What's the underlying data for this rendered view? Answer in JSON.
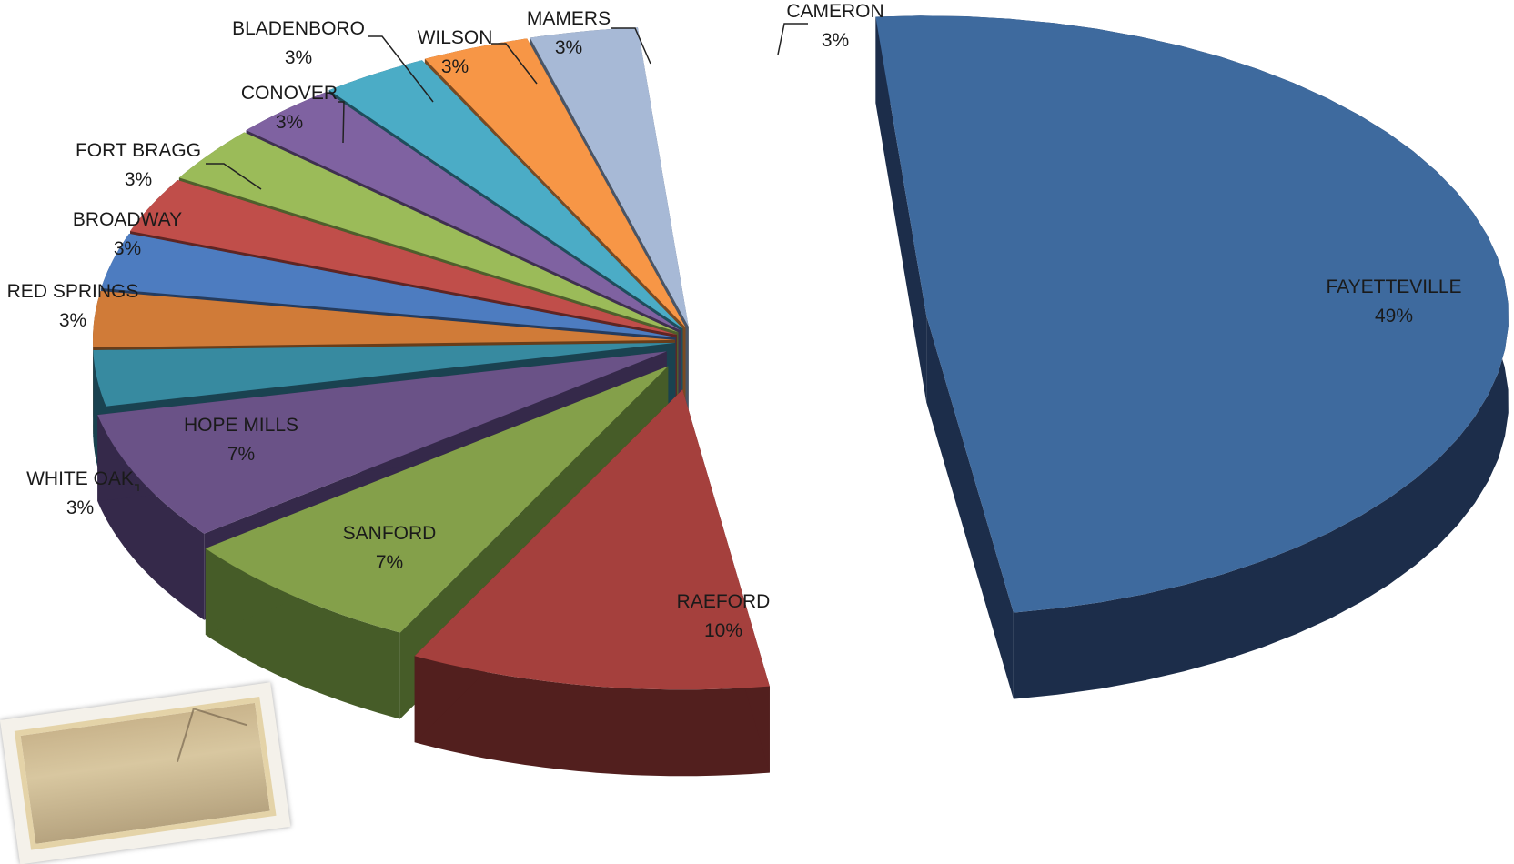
{
  "chart_data": {
    "type": "pie",
    "style": "3d-exploded",
    "title": "",
    "slices": [
      {
        "label": "FAYETTEVILLE",
        "value": 49,
        "pct_label": "49%",
        "color": "#3E6A9E",
        "dark": "#1C2D4A"
      },
      {
        "label": "RAEFORD",
        "value": 10,
        "pct_label": "10%",
        "color": "#A5403D",
        "dark": "#521F1E"
      },
      {
        "label": "SANFORD",
        "value": 7,
        "pct_label": "7%",
        "color": "#84A04A",
        "dark": "#465C28"
      },
      {
        "label": "HOPE MILLS",
        "value": 7,
        "pct_label": "7%",
        "color": "#6A5287",
        "dark": "#35294A"
      },
      {
        "label": "WHITE OAK",
        "value": 3,
        "pct_label": "3%",
        "color": "#378AA0",
        "dark": "#1A4250"
      },
      {
        "label": "RED SPRINGS",
        "value": 3,
        "pct_label": "3%",
        "color": "#D07B38",
        "dark": "#683D1A"
      },
      {
        "label": "BROADWAY",
        "value": 3,
        "pct_label": "3%",
        "color": "#4D7CC0",
        "dark": "#253C5F"
      },
      {
        "label": "FORT BRAGG",
        "value": 3,
        "pct_label": "3%",
        "color": "#C04E4A",
        "dark": "#5F2523"
      },
      {
        "label": "CONOVER",
        "value": 3,
        "pct_label": "3%",
        "color": "#9BBB59",
        "dark": "#4E5F2C"
      },
      {
        "label": "BLADENBORO",
        "value": 3,
        "pct_label": "3%",
        "color": "#7F62A1",
        "dark": "#3F3050"
      },
      {
        "label": "WILSON",
        "value": 3,
        "pct_label": "3%",
        "color": "#4BACC6",
        "dark": "#1E4E5C"
      },
      {
        "label": "MAMERS",
        "value": 3,
        "pct_label": "3%",
        "color": "#F79646",
        "dark": "#7A4A22"
      },
      {
        "label": "CAMERON",
        "value": 3,
        "pct_label": "3%",
        "color": "#A7B9D6",
        "dark": "#4A5566"
      }
    ],
    "legend": "none",
    "data_labels": "category and percentage"
  },
  "decorations": {
    "photo_icon": "framed-photo-corner"
  }
}
